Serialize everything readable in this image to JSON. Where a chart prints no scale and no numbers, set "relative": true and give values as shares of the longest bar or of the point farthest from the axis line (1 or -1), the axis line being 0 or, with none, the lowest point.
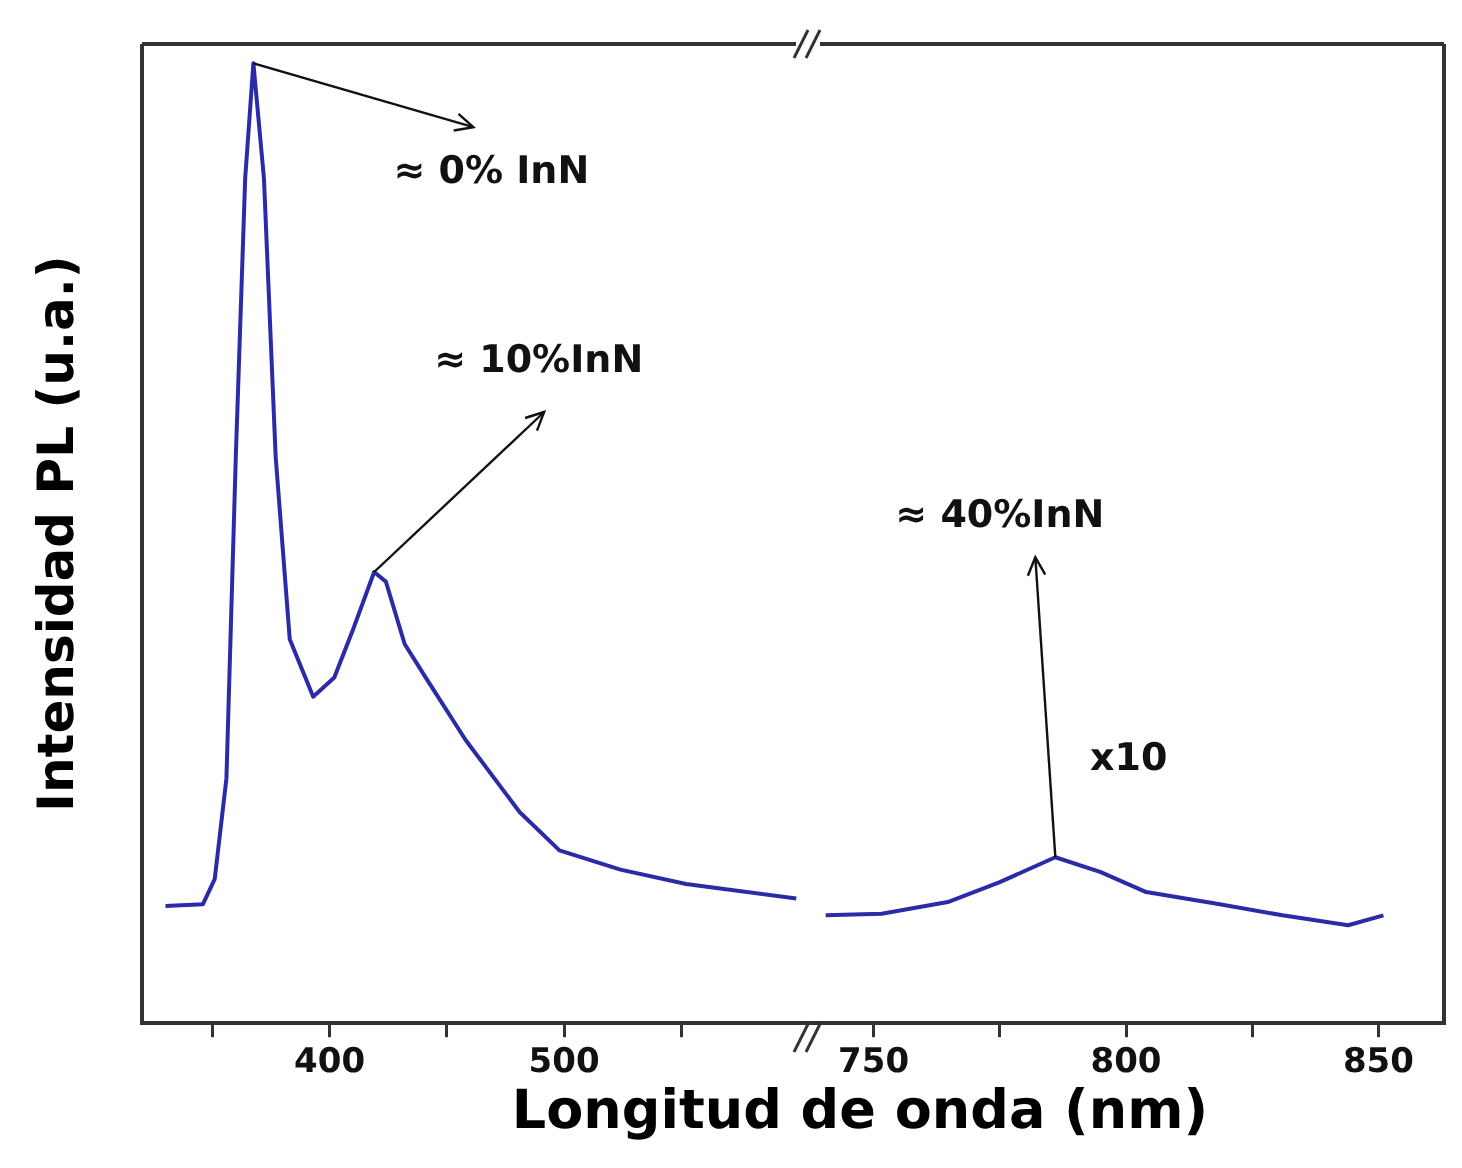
{
  "chart_data": [
    {
      "type": "line",
      "relative": true,
      "ylabel": "Intensidad PL (u.a.)",
      "xlabel": "Longitud de onda (nm)",
      "xlim": [
        320,
        604
      ],
      "xticks": [
        {
          "value": 350,
          "label": null
        },
        400,
        {
          "value": 450,
          "label": null
        },
        500,
        {
          "value": 550,
          "label": null
        }
      ],
      "legend": false,
      "grid": false,
      "marker": "none",
      "series": [
        {
          "color": "#2b2ba8",
          "x": [
            330,
            346,
            351,
            356,
            360,
            364,
            367.5,
            372,
            377,
            383,
            393,
            402,
            410,
            419,
            424,
            432,
            441,
            458,
            481,
            498,
            524,
            552,
            599
          ],
          "values": [
            0.122,
            0.124,
            0.15,
            0.255,
            0.59,
            0.88,
            1.0,
            0.88,
            0.59,
            0.4,
            0.34,
            0.36,
            0.41,
            0.47,
            0.46,
            0.395,
            0.36,
            0.295,
            0.22,
            0.18,
            0.16,
            0.145,
            0.13
          ]
        }
      ],
      "annotations": [
        {
          "text": "≈ 0% InN",
          "x": 367.5,
          "y": 1.0
        },
        {
          "text": "≈ 10%InN",
          "x": 419,
          "y": 0.47
        }
      ]
    },
    {
      "type": "line",
      "relative": true,
      "xlim": [
        737,
        863
      ],
      "xticks": [
        750,
        {
          "value": 775,
          "label": null
        },
        800,
        {
          "value": 825,
          "label": null
        },
        850
      ],
      "legend": false,
      "grid": false,
      "marker": "none",
      "series": [
        {
          "color": "#2b2ba8",
          "x": [
            740.5,
            751.6,
            764.7,
            775,
            786,
            795,
            804,
            818,
            831,
            844,
            851
          ],
          "values": [
            0.65,
            0.66,
            0.73,
            0.85,
            1.0,
            0.91,
            0.79,
            0.72,
            0.65,
            0.59,
            0.65
          ]
        }
      ],
      "annotations": [
        {
          "text": "≈ 40%InN",
          "x": 786,
          "y": 1.0
        },
        "x10"
      ]
    }
  ]
}
